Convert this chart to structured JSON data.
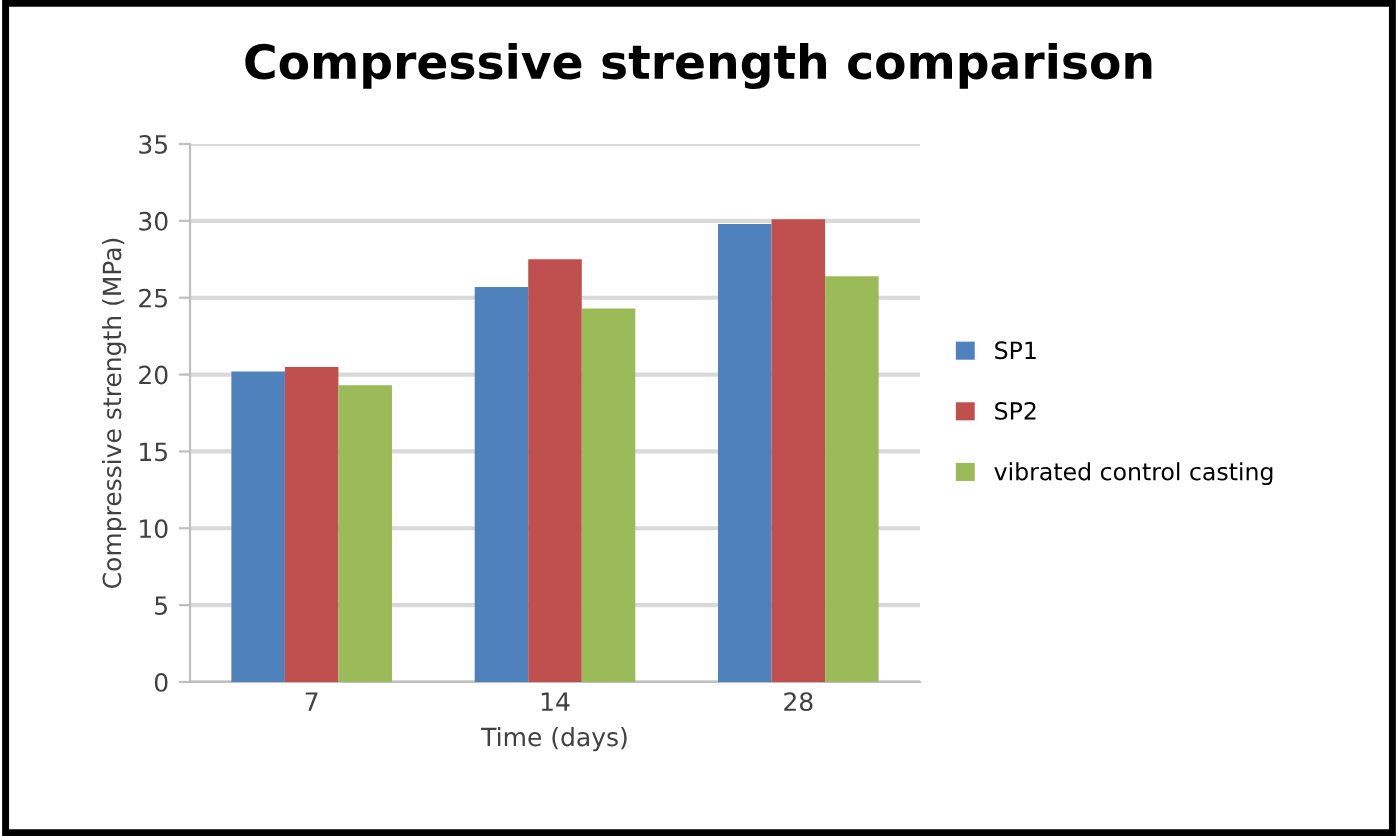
{
  "chart_data": {
    "type": "bar",
    "title": "Compressive strength comparison",
    "xlabel": "Time (days)",
    "ylabel": "Compressive strength (MPa)",
    "categories": [
      "7",
      "14",
      "28"
    ],
    "series": [
      {
        "name": "SP1",
        "color": "#4f81bd",
        "values": [
          20.2,
          25.7,
          29.8
        ]
      },
      {
        "name": "SP2",
        "color": "#c0504d",
        "values": [
          20.5,
          27.5,
          30.1
        ]
      },
      {
        "name": "vibrated control casting",
        "color": "#9bbb59",
        "values": [
          19.3,
          24.3,
          26.4
        ]
      }
    ],
    "ylim": [
      0,
      35
    ],
    "yticks": [
      0,
      5,
      10,
      15,
      20,
      25,
      30,
      35
    ],
    "grid": "y",
    "legend": "right"
  }
}
